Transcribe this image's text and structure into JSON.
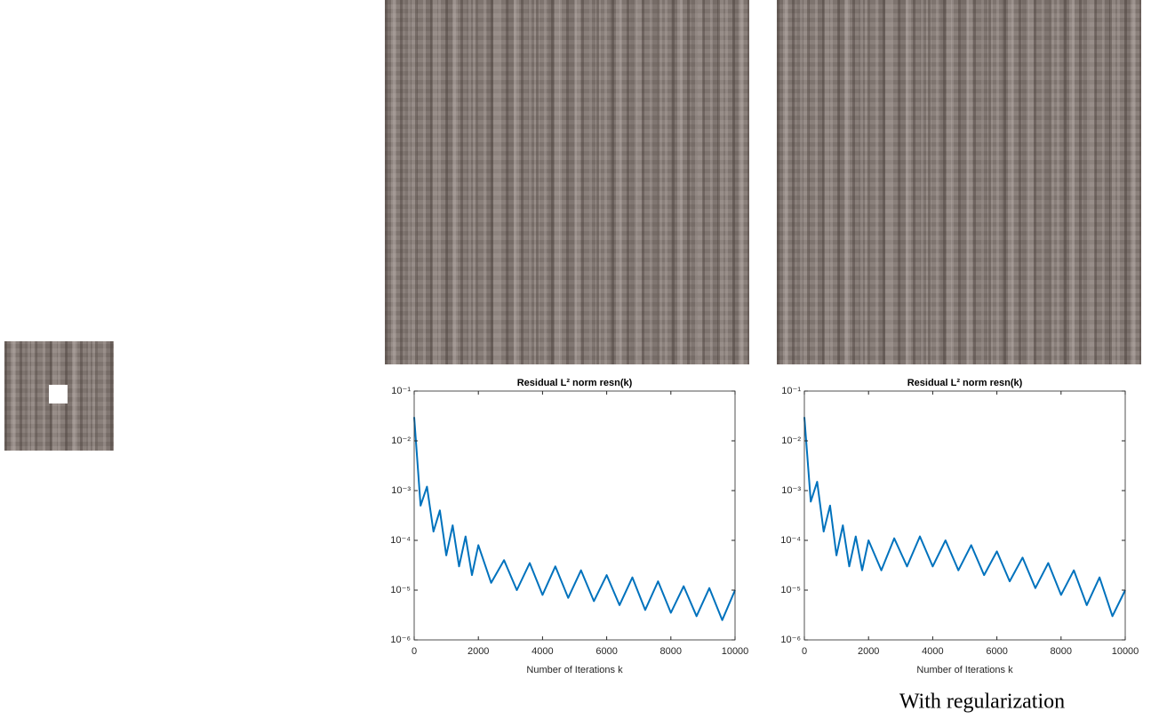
{
  "chart_data": [
    {
      "type": "line",
      "title": "Residual L² norm resn(k)",
      "x_label": "Number of Iterations k",
      "log_y": true,
      "color": "#0072bd",
      "x": [
        0,
        200,
        400,
        600,
        800,
        1000,
        1200,
        1400,
        1600,
        1800,
        2000,
        2400,
        2800,
        3200,
        3600,
        4000,
        4400,
        4800,
        5200,
        5600,
        6000,
        6400,
        6800,
        7200,
        7600,
        8000,
        8400,
        8800,
        9200,
        9600,
        10000
      ],
      "values": [
        0.03,
        0.0005,
        0.0012,
        0.00015,
        0.0004,
        5e-05,
        0.0002,
        3e-05,
        0.00012,
        2e-05,
        8e-05,
        1.4e-05,
        4e-05,
        1e-05,
        3.5e-05,
        8e-06,
        3e-05,
        7e-06,
        2.5e-05,
        6e-06,
        2e-05,
        5e-06,
        1.8e-05,
        4e-06,
        1.5e-05,
        3.5e-06,
        1.2e-05,
        3e-06,
        1.1e-05,
        2.5e-06,
        1e-05
      ],
      "xlim": [
        0,
        10000
      ],
      "xticks": [
        0,
        2000,
        4000,
        6000,
        8000,
        10000
      ],
      "ylim": [
        1e-06,
        0.1
      ],
      "yticks": [
        {
          "value": 1e-06,
          "label": "10⁻⁶"
        },
        {
          "value": 1e-05,
          "label": "10⁻⁵"
        },
        {
          "value": 0.0001,
          "label": "10⁻⁴"
        },
        {
          "value": 0.001,
          "label": "10⁻³"
        },
        {
          "value": 0.01,
          "label": "10⁻²"
        },
        {
          "value": 0.1,
          "label": "10⁻¹"
        }
      ]
    },
    {
      "type": "line",
      "title": "Residual L² norm resn(k)",
      "x_label": "Number of Iterations k",
      "log_y": true,
      "color": "#0072bd",
      "x": [
        0,
        200,
        400,
        600,
        800,
        1000,
        1200,
        1400,
        1600,
        1800,
        2000,
        2400,
        2800,
        3200,
        3600,
        4000,
        4400,
        4800,
        5200,
        5600,
        6000,
        6400,
        6800,
        7200,
        7600,
        8000,
        8400,
        8800,
        9200,
        9600,
        10000
      ],
      "values": [
        0.03,
        0.0006,
        0.0015,
        0.00015,
        0.0005,
        5e-05,
        0.0002,
        3e-05,
        0.00012,
        2.5e-05,
        0.0001,
        2.5e-05,
        0.00011,
        3e-05,
        0.00012,
        3e-05,
        0.0001,
        2.5e-05,
        8e-05,
        2e-05,
        6e-05,
        1.5e-05,
        4.5e-05,
        1.1e-05,
        3.5e-05,
        8e-06,
        2.5e-05,
        5e-06,
        1.8e-05,
        3e-06,
        1e-05
      ],
      "xlim": [
        0,
        10000
      ],
      "xticks": [
        0,
        2000,
        4000,
        6000,
        8000,
        10000
      ],
      "ylim": [
        1e-06,
        0.1
      ],
      "yticks": [
        {
          "value": 1e-06,
          "label": "10⁻⁶"
        },
        {
          "value": 1e-05,
          "label": "10⁻⁵"
        },
        {
          "value": 0.0001,
          "label": "10⁻⁴"
        },
        {
          "value": 0.001,
          "label": "10⁻³"
        },
        {
          "value": 0.01,
          "label": "10⁻²"
        },
        {
          "value": 0.1,
          "label": "10⁻¹"
        }
      ]
    }
  ],
  "caption": "With regularization"
}
